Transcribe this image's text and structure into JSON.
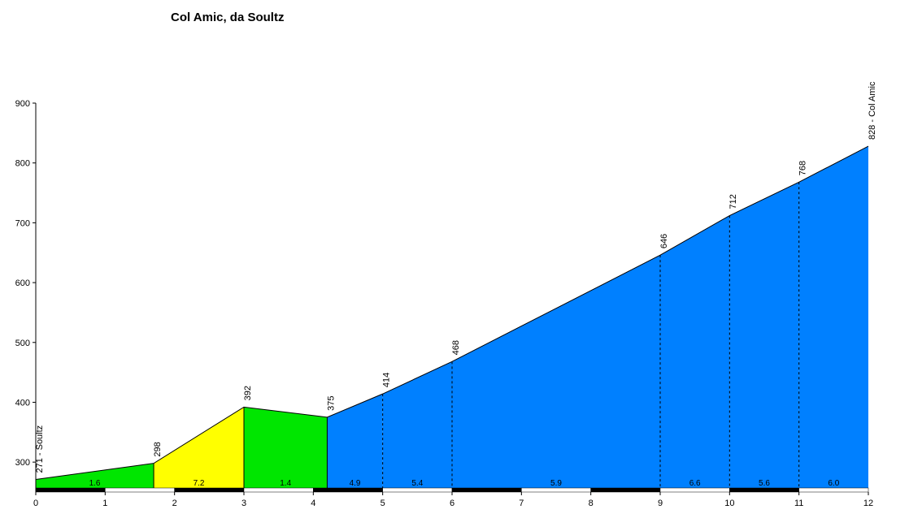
{
  "chart_data": {
    "type": "profile",
    "title": "Col Amic, da Soultz",
    "x": [
      0,
      1.7,
      3.0,
      4.2,
      5.0,
      6.0,
      9.0,
      10.0,
      11.0,
      12.0
    ],
    "series": [
      {
        "values": [
          271,
          298,
          392,
          375,
          414,
          468,
          646,
          712,
          768,
          828
        ],
        "value_labels": [
          "271 - Soultz",
          "298",
          "392",
          "375",
          "414",
          "468",
          "646",
          "712",
          "768",
          "828 - Col Amic"
        ]
      }
    ],
    "gradients": {
      "values": [
        1.6,
        7.2,
        1.4,
        4.9,
        5.4,
        5.9,
        6.6,
        5.6,
        6.0
      ],
      "value_labels": [
        "1.6",
        "7.2",
        "1.4",
        "4.9",
        "5.4",
        "5.9",
        "6.6",
        "5.6",
        "6.0"
      ],
      "colors": [
        "#00e600",
        "#ffff00",
        "#00e600",
        "#0080ff",
        "#0080ff",
        "#0080ff",
        "#0080ff",
        "#0080ff",
        "#0080ff"
      ]
    },
    "xlim": [
      0,
      12
    ],
    "xticks": [
      0,
      1,
      2,
      3,
      4,
      5,
      6,
      7,
      8,
      9,
      10,
      11,
      12
    ],
    "ylim": [
      250,
      900
    ],
    "yticks": [
      300,
      400,
      500,
      600,
      700,
      800,
      900
    ]
  }
}
